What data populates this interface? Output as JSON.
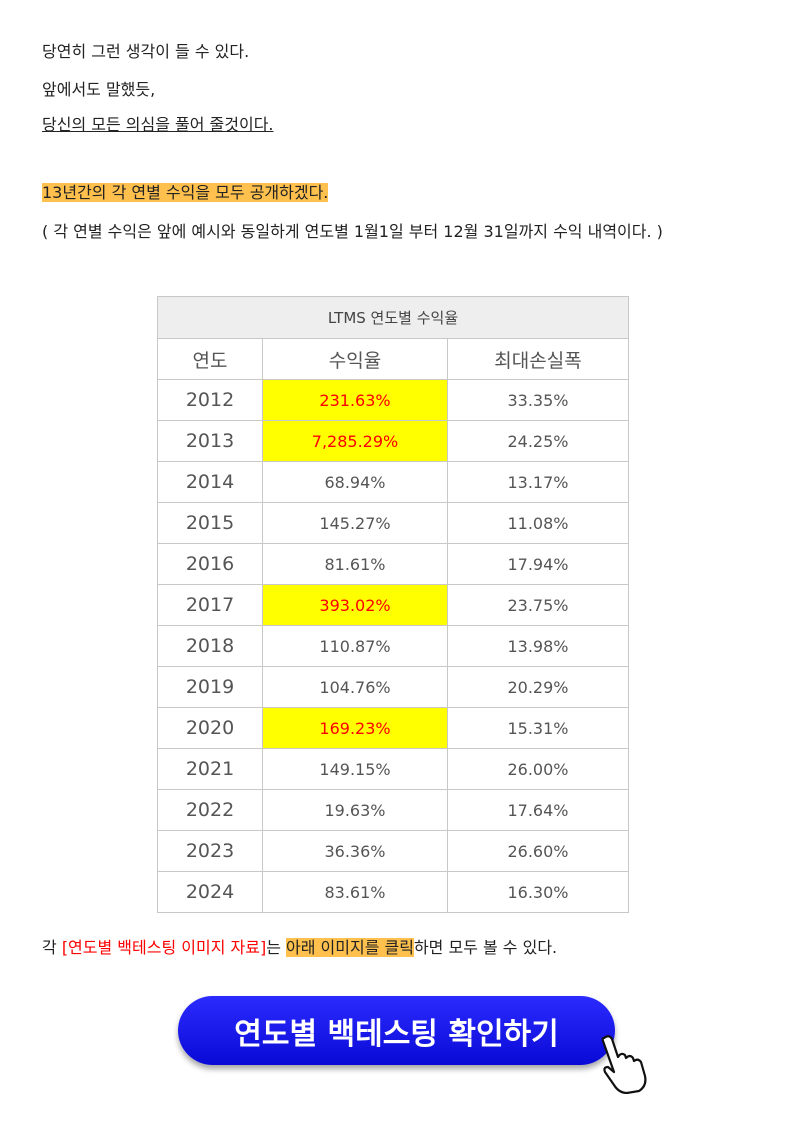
{
  "paragraphs": [
    "당연히 그런 생각이 들 수 있다.",
    "앞에서도 말했듯,",
    "당신의 모든 의심을 풀어 줄것이다."
  ],
  "highlight_line": "13년간의 각 연별 수익을 모두 공개하겠다.",
  "note": "( 각 연별 수익은 앞에 예시와 동일하게 연도별 1월1일 부터 12월 31일까지 수익 내역이다. )",
  "table": {
    "title": "LTMS 연도별 수익율",
    "headers": [
      "연도",
      "수익율",
      "최대손실폭"
    ],
    "rows": [
      {
        "year": "2012",
        "return": "231.63%",
        "max_drawdown": "33.35%",
        "highlight": true
      },
      {
        "year": "2013",
        "return": "7,285.29%",
        "max_drawdown": "24.25%",
        "highlight": true
      },
      {
        "year": "2014",
        "return": "68.94%",
        "max_drawdown": "13.17%",
        "highlight": false
      },
      {
        "year": "2015",
        "return": "145.27%",
        "max_drawdown": "11.08%",
        "highlight": false
      },
      {
        "year": "2016",
        "return": "81.61%",
        "max_drawdown": "17.94%",
        "highlight": false
      },
      {
        "year": "2017",
        "return": "393.02%",
        "max_drawdown": "23.75%",
        "highlight": true
      },
      {
        "year": "2018",
        "return": "110.87%",
        "max_drawdown": "13.98%",
        "highlight": false
      },
      {
        "year": "2019",
        "return": "104.76%",
        "max_drawdown": "20.29%",
        "highlight": false
      },
      {
        "year": "2020",
        "return": "169.23%",
        "max_drawdown": "15.31%",
        "highlight": true
      },
      {
        "year": "2021",
        "return": "149.15%",
        "max_drawdown": "26.00%",
        "highlight": false
      },
      {
        "year": "2022",
        "return": "19.63%",
        "max_drawdown": "17.64%",
        "highlight": false
      },
      {
        "year": "2023",
        "return": "36.36%",
        "max_drawdown": "26.60%",
        "highlight": false
      },
      {
        "year": "2024",
        "return": "83.61%",
        "max_drawdown": "16.30%",
        "highlight": false
      }
    ]
  },
  "footer": [
    "각 ",
    "[연도별 백테스팅 이미지 자료]",
    "는 ",
    "아래 이미지를 클릭",
    "하면 모두 볼 수 있다."
  ],
  "button": "연도별 백테스팅 확인하기"
}
